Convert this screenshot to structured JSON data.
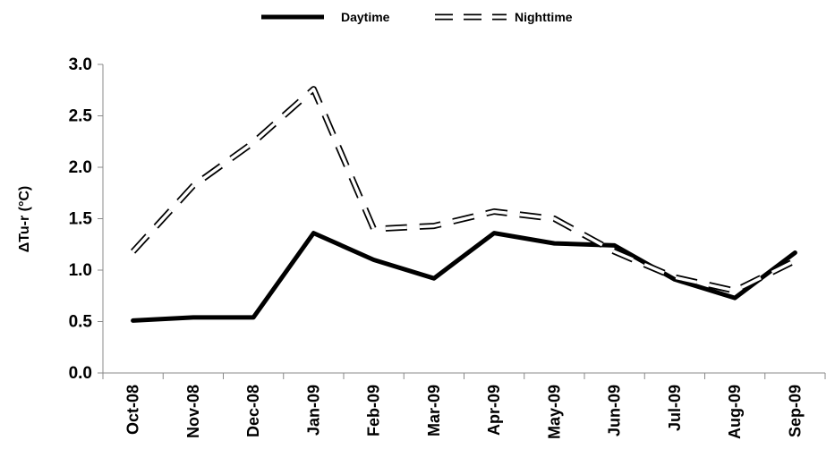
{
  "chart_data": {
    "type": "line",
    "categories": [
      "Oct-08",
      "Nov-08",
      "Dec-08",
      "Jan-09",
      "Feb-09",
      "Mar-09",
      "Apr-09",
      "May-09",
      "Jun-09",
      "Jul-09",
      "Aug-09",
      "Sep-09"
    ],
    "series": [
      {
        "name": "Daytime",
        "values": [
          0.51,
          0.54,
          0.54,
          1.36,
          1.1,
          0.92,
          1.36,
          1.26,
          1.24,
          0.91,
          0.73,
          1.17
        ],
        "color": "#000000",
        "style": "solid"
      },
      {
        "name": "Nighttime",
        "values": [
          1.18,
          1.82,
          2.24,
          2.76,
          1.4,
          1.43,
          1.57,
          1.5,
          1.18,
          0.93,
          0.8,
          1.09
        ],
        "color": "#000000",
        "style": "dashed"
      }
    ],
    "ylabel": "ΔTu-r (°C)",
    "xlabel": "",
    "ylim": [
      0.0,
      3.0
    ],
    "yticks": [
      "0.0",
      "0.5",
      "1.0",
      "1.5",
      "2.0",
      "2.5",
      "3.0"
    ],
    "grid": false,
    "legend_position": "top-center"
  }
}
